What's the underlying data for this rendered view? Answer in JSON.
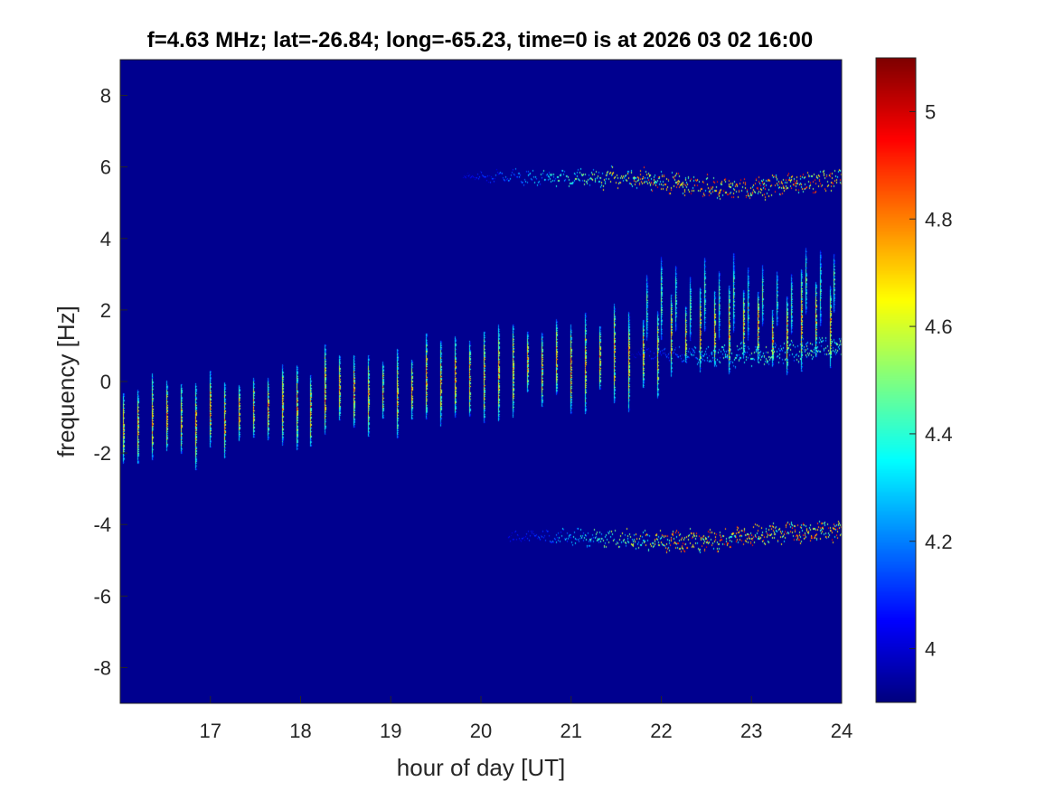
{
  "chart_data": {
    "type": "heatmap",
    "title": "f=4.63 MHz;  lat=-26.84; long=-65.23, time=0 is at 2026 03 02 16:00",
    "xlabel": "hour of day [UT]",
    "ylabel": "frequency [Hz]",
    "xlim": [
      16.0,
      24.0
    ],
    "ylim": [
      -9.0,
      9.0
    ],
    "x_ticks": [
      17,
      18,
      19,
      20,
      21,
      22,
      23,
      24
    ],
    "y_ticks": [
      -8,
      -6,
      -4,
      -2,
      0,
      2,
      4,
      6,
      8
    ],
    "colorbar": {
      "clim": [
        3.9,
        5.1
      ],
      "ticks": [
        4,
        4.2,
        4.4,
        4.6,
        4.8,
        5
      ],
      "colormap": "jet",
      "background_color": "#00008f"
    },
    "features": [
      {
        "name": "main-echo-trace",
        "type": "vertical-streaks",
        "x_start": 16.0,
        "x_end": 24.0,
        "center_start": -1.4,
        "center_end": 1.8,
        "streak_period_hours": 0.16,
        "streak_half_height": 1.1,
        "peak_value": 4.9
      },
      {
        "name": "upper-branch-trace",
        "type": "vertical-streaks",
        "x_start": 21.8,
        "x_end": 24.0,
        "center_start": 2.1,
        "center_end": 2.6,
        "streak_period_hours": 0.16,
        "streak_half_height": 0.9,
        "peak_value": 4.6
      },
      {
        "name": "upper-sideband",
        "type": "wiggly-band",
        "x_start": 19.8,
        "x_end": 24.0,
        "center_start": 5.75,
        "center_end": 5.7,
        "dip_center": 22.8,
        "dip_depth": 0.3,
        "peak_value": 5.05
      },
      {
        "name": "lower-sideband",
        "type": "wiggly-band",
        "x_start": 20.3,
        "x_end": 24.0,
        "center_start": -4.35,
        "center_end": -4.15,
        "dip_center": 22.2,
        "dip_depth": 0.2,
        "peak_value": 5.05
      },
      {
        "name": "middle-sideband",
        "type": "wiggly-band",
        "x_start": 21.6,
        "x_end": 24.0,
        "center_start": 0.85,
        "center_end": 1.0,
        "dip_center": 22.8,
        "dip_depth": 0.2,
        "peak_value": 4.6
      }
    ]
  }
}
